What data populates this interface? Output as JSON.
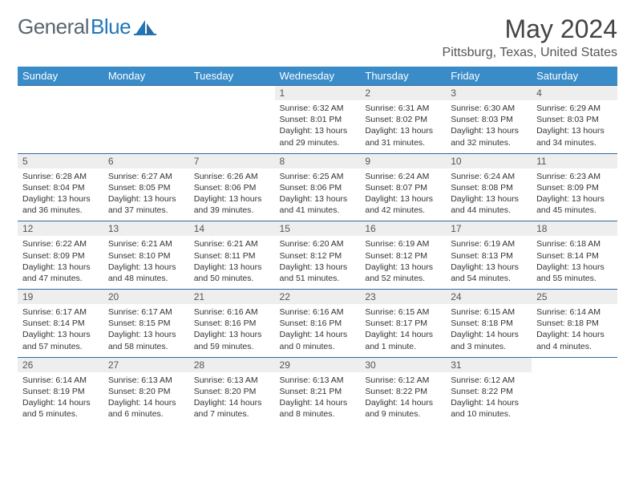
{
  "brand": {
    "part1": "General",
    "part2": "Blue"
  },
  "title": "May 2024",
  "location": "Pittsburg, Texas, United States",
  "colors": {
    "header_bg": "#3a8cc9",
    "header_text": "#ffffff",
    "daynum_bg": "#eeeeee",
    "border": "#2e6a9e",
    "brand_gray": "#5a6670",
    "brand_blue": "#2176b8"
  },
  "dayHeaders": [
    "Sunday",
    "Monday",
    "Tuesday",
    "Wednesday",
    "Thursday",
    "Friday",
    "Saturday"
  ],
  "weeks": [
    [
      {
        "n": "",
        "sr": "",
        "ss": "",
        "dl": ""
      },
      {
        "n": "",
        "sr": "",
        "ss": "",
        "dl": ""
      },
      {
        "n": "",
        "sr": "",
        "ss": "",
        "dl": ""
      },
      {
        "n": "1",
        "sr": "6:32 AM",
        "ss": "8:01 PM",
        "dl": "13 hours and 29 minutes."
      },
      {
        "n": "2",
        "sr": "6:31 AM",
        "ss": "8:02 PM",
        "dl": "13 hours and 31 minutes."
      },
      {
        "n": "3",
        "sr": "6:30 AM",
        "ss": "8:03 PM",
        "dl": "13 hours and 32 minutes."
      },
      {
        "n": "4",
        "sr": "6:29 AM",
        "ss": "8:03 PM",
        "dl": "13 hours and 34 minutes."
      }
    ],
    [
      {
        "n": "5",
        "sr": "6:28 AM",
        "ss": "8:04 PM",
        "dl": "13 hours and 36 minutes."
      },
      {
        "n": "6",
        "sr": "6:27 AM",
        "ss": "8:05 PM",
        "dl": "13 hours and 37 minutes."
      },
      {
        "n": "7",
        "sr": "6:26 AM",
        "ss": "8:06 PM",
        "dl": "13 hours and 39 minutes."
      },
      {
        "n": "8",
        "sr": "6:25 AM",
        "ss": "8:06 PM",
        "dl": "13 hours and 41 minutes."
      },
      {
        "n": "9",
        "sr": "6:24 AM",
        "ss": "8:07 PM",
        "dl": "13 hours and 42 minutes."
      },
      {
        "n": "10",
        "sr": "6:24 AM",
        "ss": "8:08 PM",
        "dl": "13 hours and 44 minutes."
      },
      {
        "n": "11",
        "sr": "6:23 AM",
        "ss": "8:09 PM",
        "dl": "13 hours and 45 minutes."
      }
    ],
    [
      {
        "n": "12",
        "sr": "6:22 AM",
        "ss": "8:09 PM",
        "dl": "13 hours and 47 minutes."
      },
      {
        "n": "13",
        "sr": "6:21 AM",
        "ss": "8:10 PM",
        "dl": "13 hours and 48 minutes."
      },
      {
        "n": "14",
        "sr": "6:21 AM",
        "ss": "8:11 PM",
        "dl": "13 hours and 50 minutes."
      },
      {
        "n": "15",
        "sr": "6:20 AM",
        "ss": "8:12 PM",
        "dl": "13 hours and 51 minutes."
      },
      {
        "n": "16",
        "sr": "6:19 AM",
        "ss": "8:12 PM",
        "dl": "13 hours and 52 minutes."
      },
      {
        "n": "17",
        "sr": "6:19 AM",
        "ss": "8:13 PM",
        "dl": "13 hours and 54 minutes."
      },
      {
        "n": "18",
        "sr": "6:18 AM",
        "ss": "8:14 PM",
        "dl": "13 hours and 55 minutes."
      }
    ],
    [
      {
        "n": "19",
        "sr": "6:17 AM",
        "ss": "8:14 PM",
        "dl": "13 hours and 57 minutes."
      },
      {
        "n": "20",
        "sr": "6:17 AM",
        "ss": "8:15 PM",
        "dl": "13 hours and 58 minutes."
      },
      {
        "n": "21",
        "sr": "6:16 AM",
        "ss": "8:16 PM",
        "dl": "13 hours and 59 minutes."
      },
      {
        "n": "22",
        "sr": "6:16 AM",
        "ss": "8:16 PM",
        "dl": "14 hours and 0 minutes."
      },
      {
        "n": "23",
        "sr": "6:15 AM",
        "ss": "8:17 PM",
        "dl": "14 hours and 1 minute."
      },
      {
        "n": "24",
        "sr": "6:15 AM",
        "ss": "8:18 PM",
        "dl": "14 hours and 3 minutes."
      },
      {
        "n": "25",
        "sr": "6:14 AM",
        "ss": "8:18 PM",
        "dl": "14 hours and 4 minutes."
      }
    ],
    [
      {
        "n": "26",
        "sr": "6:14 AM",
        "ss": "8:19 PM",
        "dl": "14 hours and 5 minutes."
      },
      {
        "n": "27",
        "sr": "6:13 AM",
        "ss": "8:20 PM",
        "dl": "14 hours and 6 minutes."
      },
      {
        "n": "28",
        "sr": "6:13 AM",
        "ss": "8:20 PM",
        "dl": "14 hours and 7 minutes."
      },
      {
        "n": "29",
        "sr": "6:13 AM",
        "ss": "8:21 PM",
        "dl": "14 hours and 8 minutes."
      },
      {
        "n": "30",
        "sr": "6:12 AM",
        "ss": "8:22 PM",
        "dl": "14 hours and 9 minutes."
      },
      {
        "n": "31",
        "sr": "6:12 AM",
        "ss": "8:22 PM",
        "dl": "14 hours and 10 minutes."
      },
      {
        "n": "",
        "sr": "",
        "ss": "",
        "dl": ""
      }
    ]
  ],
  "labels": {
    "sunrise": "Sunrise:",
    "sunset": "Sunset:",
    "daylight": "Daylight:"
  }
}
